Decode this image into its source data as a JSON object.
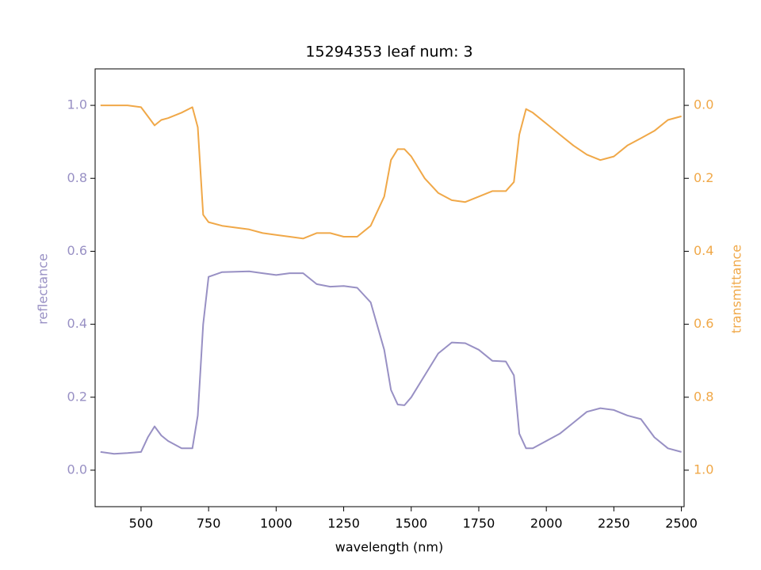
{
  "chart_data": {
    "type": "line",
    "title": "15294353 leaf num: 3",
    "xlabel": "wavelength (nm)",
    "ylabel": "reflectance",
    "y2label": "transmittance",
    "x": [
      350,
      400,
      450,
      500,
      525,
      550,
      575,
      600,
      650,
      690,
      710,
      730,
      750,
      800,
      900,
      950,
      1000,
      1050,
      1100,
      1150,
      1200,
      1250,
      1300,
      1350,
      1400,
      1425,
      1450,
      1475,
      1500,
      1550,
      1600,
      1650,
      1700,
      1750,
      1800,
      1850,
      1880,
      1900,
      1925,
      1950,
      2000,
      2050,
      2100,
      2150,
      2200,
      2250,
      2300,
      2350,
      2400,
      2450,
      2500
    ],
    "series": [
      {
        "name": "reflectance",
        "color": "#9890c4",
        "axis": "y",
        "values": [
          0.05,
          0.045,
          0.047,
          0.05,
          0.09,
          0.12,
          0.095,
          0.08,
          0.06,
          0.06,
          0.15,
          0.4,
          0.53,
          0.543,
          0.545,
          0.54,
          0.535,
          0.54,
          0.54,
          0.51,
          0.503,
          0.505,
          0.5,
          0.46,
          0.33,
          0.22,
          0.18,
          0.178,
          0.2,
          0.26,
          0.32,
          0.35,
          0.348,
          0.33,
          0.3,
          0.298,
          0.26,
          0.1,
          0.06,
          0.06,
          0.08,
          0.1,
          0.13,
          0.16,
          0.17,
          0.165,
          0.15,
          0.14,
          0.09,
          0.06,
          0.05
        ]
      },
      {
        "name": "transmittance",
        "color": "#f0a848",
        "axis": "y2",
        "values": [
          0.0,
          0.0,
          0.0,
          0.005,
          0.03,
          0.055,
          0.04,
          0.035,
          0.02,
          0.005,
          0.06,
          0.3,
          0.32,
          0.33,
          0.34,
          0.35,
          0.355,
          0.36,
          0.365,
          0.35,
          0.35,
          0.36,
          0.36,
          0.33,
          0.25,
          0.15,
          0.12,
          0.12,
          0.14,
          0.2,
          0.24,
          0.26,
          0.265,
          0.25,
          0.235,
          0.235,
          0.21,
          0.08,
          0.01,
          0.02,
          0.05,
          0.08,
          0.11,
          0.135,
          0.15,
          0.14,
          0.11,
          0.09,
          0.07,
          0.04,
          0.03
        ]
      }
    ],
    "xlim": [
      330,
      2510
    ],
    "xticks": [
      500,
      750,
      1000,
      1250,
      1500,
      1750,
      2000,
      2250,
      2500
    ],
    "ylim": [
      -0.1,
      1.1
    ],
    "yticks": [
      {
        "value": 0,
        "label": "0.0"
      },
      {
        "value": 0.2,
        "label": "0.2"
      },
      {
        "value": 0.4,
        "label": "0.4"
      },
      {
        "value": 0.6,
        "label": "0.6"
      },
      {
        "value": 0.8,
        "label": "0.8"
      },
      {
        "value": 1,
        "label": "1.0"
      }
    ],
    "y2lim": [
      1.1,
      -0.1
    ],
    "y2ticks": [
      {
        "value": 0,
        "label": "0.0"
      },
      {
        "value": 0.2,
        "label": "0.2"
      },
      {
        "value": 0.4,
        "label": "0.4"
      },
      {
        "value": 0.6,
        "label": "0.6"
      },
      {
        "value": 0.8,
        "label": "0.8"
      },
      {
        "value": 1,
        "label": "1.0"
      }
    ]
  }
}
